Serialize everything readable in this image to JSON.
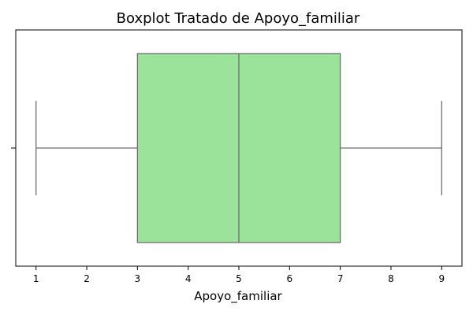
{
  "chart_data": {
    "type": "boxplot",
    "title": "Boxplot Tratado de Apoyo_familiar",
    "xlabel": "Apoyo_familiar",
    "ylabel": "",
    "orientation": "horizontal",
    "xlim": [
      0.6,
      9.4
    ],
    "xticks": [
      1,
      2,
      3,
      4,
      5,
      6,
      7,
      8,
      9
    ],
    "grid": false,
    "box": {
      "min": 1,
      "q1": 3,
      "median": 5,
      "q3": 7,
      "max": 9
    },
    "colors": {
      "box_fill": "#9be39b",
      "line": "#6e6e6e",
      "axes": "#000000"
    }
  }
}
